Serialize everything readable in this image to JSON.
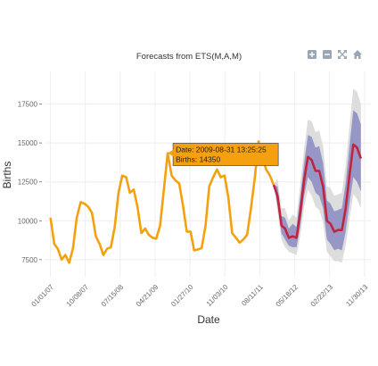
{
  "chart_data": {
    "type": "line",
    "title": "Forecasts from ETS(M,A,M)",
    "xlabel": "Date",
    "ylabel": "Births",
    "x_ticks": [
      "01/01/07",
      "10/08/07",
      "07/15/08",
      "04/21/09",
      "01/27/10",
      "11/03/10",
      "08/11/11",
      "05/18/12",
      "02/22/13",
      "11/30/13"
    ],
    "y_ticks": [
      7500,
      10000,
      12500,
      15000,
      17500
    ],
    "xlim": [
      "2006-11-15",
      "2014-01-20"
    ],
    "ylim": [
      6400,
      19600
    ],
    "grid": true,
    "legend": "none",
    "colors": {
      "observed": "#f5a00e",
      "forecast": "#c0243f",
      "band80": "#8f8fc4",
      "band95": "#d9d9d9",
      "tooltip_bg": "#f5a00e"
    },
    "series": [
      {
        "x": [
          "2007-01-01",
          "2007-02-01",
          "2007-03-01",
          "2007-04-01",
          "2007-05-01",
          "2007-06-01",
          "2007-07-01",
          "2007-08-01",
          "2007-09-01",
          "2007-10-01",
          "2007-11-01",
          "2007-12-01",
          "2008-01-01",
          "2008-02-01",
          "2008-03-01",
          "2008-04-01",
          "2008-05-01",
          "2008-06-01",
          "2008-07-01",
          "2008-08-01",
          "2008-09-01",
          "2008-10-01",
          "2008-11-01",
          "2008-12-01",
          "2009-01-01",
          "2009-02-01",
          "2009-03-01",
          "2009-04-01",
          "2009-05-01",
          "2009-06-01",
          "2009-07-01",
          "2009-08-01",
          "2009-09-01",
          "2009-10-01",
          "2009-11-01",
          "2009-12-01",
          "2010-01-01",
          "2010-02-01",
          "2010-03-01",
          "2010-04-01",
          "2010-05-01",
          "2010-06-01",
          "2010-07-01",
          "2010-08-01",
          "2010-09-01",
          "2010-10-01",
          "2010-11-01",
          "2010-12-01",
          "2011-01-01",
          "2011-02-01",
          "2011-03-01",
          "2011-04-01",
          "2011-05-01",
          "2011-06-01",
          "2011-07-01",
          "2011-08-01",
          "2011-09-01",
          "2011-10-01",
          "2011-11-01",
          "2011-12-01"
        ],
        "y": [
          10200,
          8500,
          8200,
          7500,
          7800,
          7300,
          8200,
          10200,
          11200,
          11100,
          10900,
          10500,
          9000,
          8500,
          7800,
          8200,
          8300,
          9600,
          11800,
          12900,
          12800,
          11800,
          12000,
          10900,
          9200,
          9500,
          9100,
          8900,
          8850,
          9700,
          12000,
          14350,
          12900,
          12600,
          12400,
          11000,
          9300,
          9300,
          8100,
          8150,
          8250,
          9700,
          12200,
          12800,
          13300,
          12800,
          12900,
          11500,
          9200,
          8900,
          8600,
          8800,
          9100,
          10800,
          12700,
          15100,
          14100,
          13300,
          12900,
          12300
        ]
      },
      {
        "x": [
          "2011-12-01",
          "2012-01-01",
          "2012-02-01",
          "2012-03-01",
          "2012-04-01",
          "2012-05-01",
          "2012-06-01",
          "2012-07-01",
          "2012-08-01",
          "2012-09-01",
          "2012-10-01",
          "2012-11-01",
          "2012-12-01",
          "2013-01-01",
          "2013-02-01",
          "2013-03-01",
          "2013-04-01",
          "2013-05-01",
          "2013-06-01",
          "2013-07-01",
          "2013-08-01",
          "2013-09-01",
          "2013-10-01",
          "2013-11-01"
        ],
        "y": [
          12300,
          11600,
          9700,
          9500,
          8900,
          9000,
          8900,
          10500,
          12600,
          14100,
          13900,
          13200,
          13200,
          12200,
          10000,
          9800,
          9300,
          9400,
          9400,
          10800,
          12900,
          14900,
          14700,
          14000
        ],
        "lo80": [
          12300,
          11000,
          9200,
          8800,
          8400,
          8300,
          8300,
          9600,
          11600,
          12800,
          12500,
          11800,
          11600,
          10800,
          8800,
          8500,
          8100,
          8200,
          8100,
          9300,
          11100,
          12800,
          12500,
          11900
        ],
        "hi80": [
          12300,
          12200,
          10300,
          10200,
          9500,
          9800,
          9600,
          11500,
          13700,
          15500,
          15400,
          14700,
          14800,
          13700,
          11300,
          11100,
          10600,
          10700,
          10800,
          12400,
          14800,
          17100,
          16900,
          16200
        ],
        "lo95": [
          12300,
          10600,
          8800,
          8300,
          8000,
          7900,
          7800,
          9000,
          10900,
          12000,
          11600,
          10900,
          10700,
          9900,
          8000,
          7700,
          7400,
          7400,
          7300,
          8400,
          10100,
          11700,
          11400,
          10800
        ],
        "hi95": [
          12300,
          12700,
          10800,
          10800,
          10000,
          10400,
          10200,
          12300,
          14600,
          16500,
          16400,
          15700,
          15800,
          14800,
          12200,
          12100,
          11600,
          11700,
          11800,
          13500,
          16100,
          18500,
          18300,
          17500
        ]
      }
    ],
    "tooltip": {
      "date_line": "Date: 2009-08-31 13:25:25",
      "births_line": "Births: 14350",
      "x": "2009-08-01",
      "y": 14350
    },
    "modebar": {
      "icons": [
        "zoom-in-icon",
        "zoom-out-icon",
        "autoscale-icon",
        "reset-home-icon"
      ]
    }
  }
}
